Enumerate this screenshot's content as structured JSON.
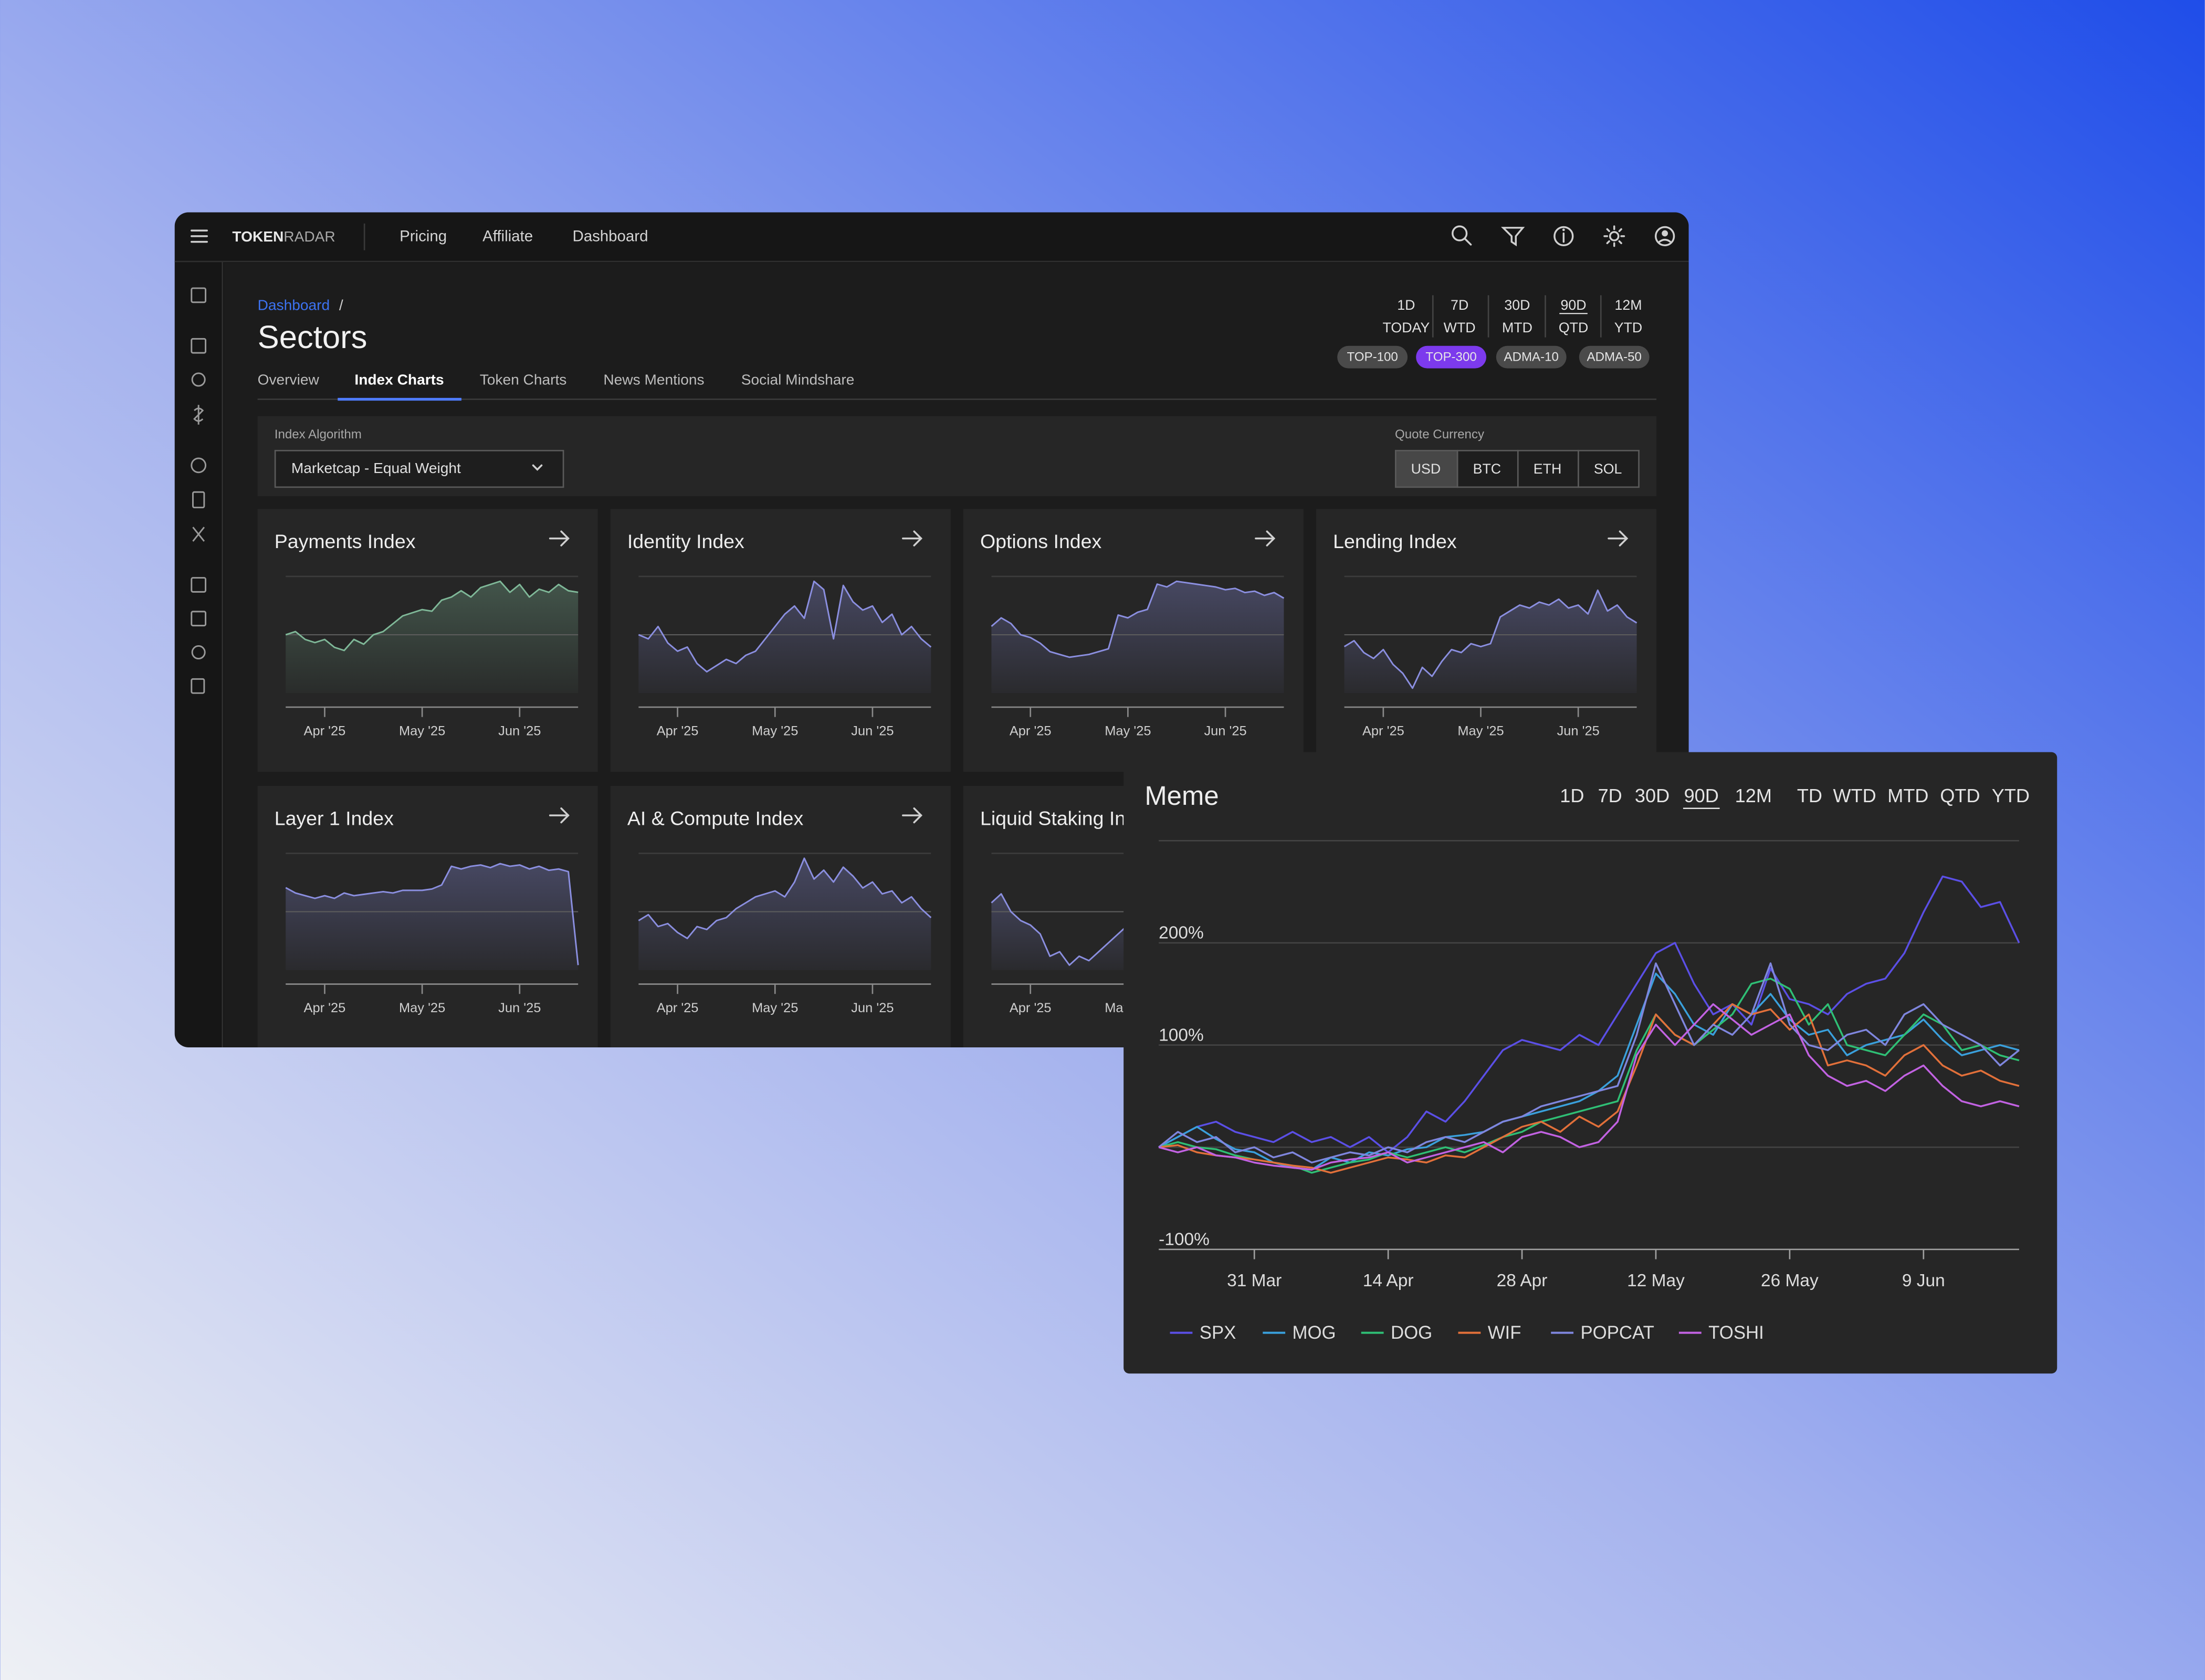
{
  "app": {
    "brand": [
      "TOKEN",
      "RADAR"
    ],
    "nav": [
      "Pricing",
      "Affiliate",
      "Dashboard"
    ],
    "breadcrumb": [
      "Dashboard",
      "/"
    ],
    "title": "Sectors",
    "tabs": [
      "Overview",
      "Index Charts",
      "Token Charts",
      "News Mentions",
      "Social Mindshare"
    ],
    "periods": [
      [
        "1D",
        "TODAY"
      ],
      [
        "7D",
        "WTD"
      ],
      [
        "30D",
        "MTD"
      ],
      [
        "90D",
        "QTD"
      ],
      [
        "12M",
        "YTD"
      ]
    ],
    "universes": [
      "TOP-100",
      "TOP-300",
      "ADMA-10",
      "ADMA-50"
    ],
    "index_algorithm": {
      "label": "Index Algorithm",
      "value": "Marketcap - Equal Weight"
    },
    "quote_currency": {
      "label": "Quote Currency",
      "options": [
        "USD",
        "BTC",
        "ETH",
        "SOL"
      ]
    }
  },
  "cards": {
    "type": "area",
    "categories": [
      null,
      null,
      null,
      null,
      "Apr '25",
      null,
      null,
      null,
      null,
      null,
      null,
      null,
      null,
      null,
      "May '25",
      null,
      null,
      null,
      null,
      null,
      null,
      null,
      null,
      null,
      "Jun '25",
      null,
      null,
      null,
      null,
      null,
      null
    ],
    "items": [
      {
        "title": "Payments Index",
        "color": "#7fb898",
        "values": [
          0,
          2,
          -3,
          -5,
          -3,
          -8,
          -10,
          -3,
          -6,
          0,
          2,
          7,
          12,
          14,
          16,
          15,
          22,
          24,
          28,
          24,
          30,
          32,
          34,
          27,
          32,
          24,
          29,
          27,
          32,
          28,
          27
        ]
      },
      {
        "title": "Identity Index",
        "color": "#8b8fe0",
        "values": [
          0,
          -2,
          4,
          -4,
          -8,
          -6,
          -14,
          -18,
          -15,
          -12,
          -14,
          -10,
          -8,
          -2,
          4,
          10,
          14,
          8,
          26,
          22,
          -2,
          24,
          16,
          12,
          14,
          6,
          10,
          0,
          4,
          -2,
          -6
        ]
      },
      {
        "title": "Options Index",
        "color": "#8b8fe0",
        "values": [
          6,
          12,
          8,
          0,
          -2,
          -6,
          -12,
          -14,
          -16,
          -15,
          -14,
          -12,
          -10,
          14,
          12,
          16,
          18,
          36,
          34,
          38,
          37,
          36,
          35,
          34,
          32,
          33,
          30,
          31,
          28,
          30,
          26
        ]
      },
      {
        "title": "Lending Index",
        "color": "#8b8fe0",
        "values": [
          -8,
          -4,
          -12,
          -16,
          -10,
          -20,
          -26,
          -36,
          -22,
          -28,
          -18,
          -10,
          -12,
          -6,
          -8,
          -6,
          12,
          16,
          20,
          18,
          22,
          20,
          24,
          18,
          20,
          14,
          30,
          16,
          20,
          12,
          8
        ]
      },
      {
        "title": "Layer 1 Index",
        "color": "#8b8fe0",
        "values": [
          18,
          14,
          12,
          10,
          12,
          10,
          14,
          12,
          13,
          14,
          15,
          14,
          16,
          16,
          16,
          17,
          20,
          34,
          32,
          34,
          35,
          33,
          36,
          34,
          35,
          32,
          34,
          31,
          32,
          30,
          -40
        ]
      },
      {
        "title": "AI & Compute Index",
        "color": "#8b8fe0",
        "values": [
          -6,
          -2,
          -10,
          -8,
          -14,
          -18,
          -10,
          -12,
          -6,
          -4,
          2,
          6,
          10,
          12,
          14,
          10,
          20,
          36,
          22,
          28,
          20,
          30,
          24,
          16,
          20,
          12,
          14,
          6,
          10,
          2,
          -4
        ]
      },
      {
        "title": "Liquid Staking Index",
        "color": "#8b8fe0",
        "values": [
          4,
          8,
          0,
          -4,
          -6,
          -10,
          -20,
          -18,
          -24,
          -20,
          -22,
          -18,
          -14,
          -10,
          -6,
          -4,
          0,
          6,
          10,
          8,
          12,
          10,
          14,
          12,
          10,
          8,
          10,
          6,
          8,
          4,
          2
        ]
      }
    ]
  },
  "meme_chart": {
    "type": "line",
    "title": "Meme",
    "periods": [
      [
        "1D",
        "7D",
        "30D",
        "90D",
        "12M"
      ],
      [
        "TD",
        "WTD",
        "MTD",
        "QTD",
        "YTD"
      ]
    ],
    "categories": [
      null,
      null,
      null,
      null,
      null,
      "31 Mar",
      null,
      null,
      null,
      null,
      null,
      null,
      "14 Apr",
      null,
      null,
      null,
      null,
      null,
      null,
      "28 Apr",
      null,
      null,
      null,
      null,
      null,
      null,
      "12 May",
      null,
      null,
      null,
      null,
      null,
      null,
      "26 May",
      null,
      null,
      null,
      null,
      null,
      null,
      "9 Jun",
      null,
      null,
      null,
      null,
      null
    ],
    "ylim": [
      -100,
      300
    ],
    "yticks": [
      {
        "value": -100,
        "label": "-100%"
      },
      {
        "value": 100,
        "label": "100%"
      },
      {
        "value": 200,
        "label": "200%"
      }
    ],
    "grid": true,
    "legend": "bottom-left",
    "series": [
      {
        "name": "SPX",
        "color": "#5b4fe6",
        "values": [
          0,
          10,
          20,
          25,
          15,
          10,
          5,
          15,
          5,
          10,
          0,
          10,
          -5,
          10,
          35,
          25,
          45,
          70,
          95,
          105,
          100,
          95,
          110,
          100,
          130,
          160,
          190,
          200,
          160,
          130,
          140,
          120,
          175,
          145,
          140,
          130,
          150,
          160,
          165,
          190,
          230,
          265,
          260,
          235,
          240,
          200
        ]
      },
      {
        "name": "MOG",
        "color": "#3aa0dc",
        "values": [
          0,
          10,
          20,
          8,
          -2,
          -5,
          -15,
          -20,
          -22,
          -10,
          -15,
          -5,
          -8,
          -2,
          0,
          10,
          12,
          15,
          25,
          30,
          35,
          40,
          45,
          55,
          70,
          120,
          170,
          150,
          120,
          110,
          140,
          130,
          150,
          125,
          110,
          115,
          90,
          100,
          105,
          110,
          125,
          105,
          90,
          95,
          100,
          95
        ]
      },
      {
        "name": "DOG",
        "color": "#2fbf75",
        "values": [
          0,
          5,
          0,
          -2,
          -8,
          -12,
          -15,
          -18,
          -25,
          -20,
          -15,
          -12,
          -5,
          -10,
          -5,
          0,
          -5,
          2,
          10,
          15,
          25,
          30,
          35,
          40,
          45,
          95,
          130,
          110,
          100,
          115,
          130,
          160,
          165,
          155,
          120,
          140,
          100,
          95,
          90,
          110,
          130,
          120,
          95,
          100,
          90,
          85
        ]
      },
      {
        "name": "WIF",
        "color": "#e2703a",
        "values": [
          0,
          2,
          -5,
          -8,
          -10,
          -12,
          -15,
          -18,
          -20,
          -25,
          -20,
          -15,
          -10,
          -12,
          -15,
          -8,
          -10,
          0,
          10,
          20,
          25,
          15,
          30,
          20,
          35,
          80,
          130,
          110,
          100,
          120,
          140,
          130,
          135,
          115,
          130,
          80,
          85,
          80,
          70,
          90,
          100,
          80,
          70,
          75,
          65,
          60
        ]
      },
      {
        "name": "POPCAT",
        "color": "#7f86de",
        "values": [
          0,
          15,
          5,
          10,
          -5,
          0,
          -10,
          -5,
          -15,
          -10,
          -5,
          -8,
          0,
          -5,
          5,
          10,
          5,
          15,
          25,
          30,
          40,
          45,
          50,
          55,
          60,
          110,
          180,
          140,
          100,
          120,
          110,
          130,
          180,
          120,
          100,
          95,
          110,
          115,
          100,
          130,
          140,
          120,
          110,
          100,
          80,
          95
        ]
      },
      {
        "name": "TOSHI",
        "color": "#c262e2",
        "values": [
          0,
          -5,
          0,
          -8,
          -10,
          -15,
          -18,
          -20,
          -22,
          -15,
          -12,
          -10,
          -5,
          -15,
          -10,
          -5,
          0,
          5,
          -5,
          10,
          15,
          10,
          0,
          5,
          25,
          90,
          120,
          100,
          120,
          140,
          125,
          110,
          120,
          130,
          90,
          70,
          60,
          65,
          55,
          70,
          80,
          60,
          45,
          40,
          45,
          40
        ]
      }
    ]
  }
}
